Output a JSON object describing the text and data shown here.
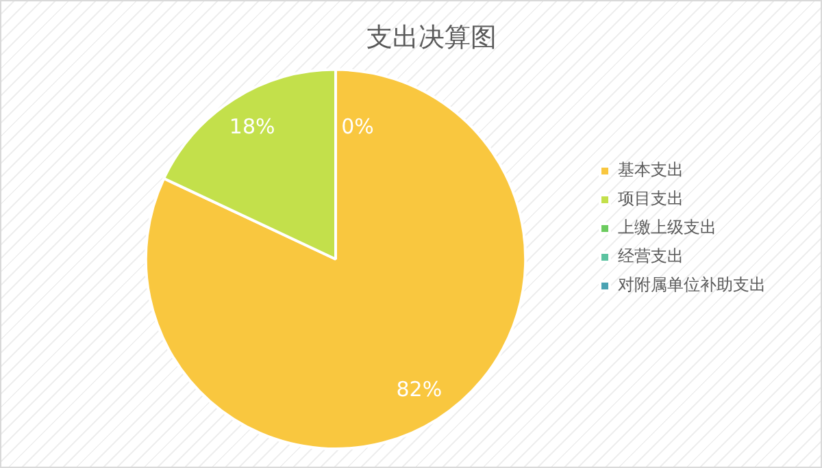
{
  "chart_data": {
    "type": "pie",
    "title": "支出决算图",
    "categories": [
      "基本支出",
      "项目支出",
      "上缴上级支出",
      "经营支出",
      "对附属单位补助支出"
    ],
    "values": [
      82,
      18,
      0,
      0,
      0
    ],
    "colors": [
      "#f9c73f",
      "#c3e04b",
      "#6ccb5f",
      "#5cc3a0",
      "#4ba3b3"
    ],
    "value_labels": [
      "82%",
      "18%",
      "0%",
      null,
      null
    ],
    "legend": "right"
  }
}
